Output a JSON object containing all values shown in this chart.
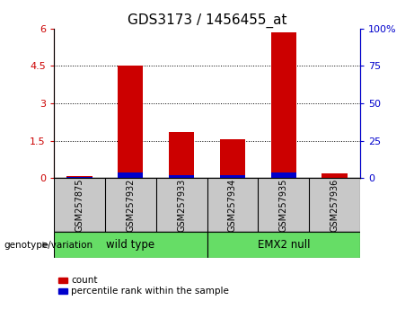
{
  "title": "GDS3173 / 1456455_at",
  "categories": [
    "GSM257875",
    "GSM257932",
    "GSM257933",
    "GSM257934",
    "GSM257935",
    "GSM257936"
  ],
  "count_values": [
    0.07,
    4.5,
    1.85,
    1.55,
    5.85,
    0.18
  ],
  "percentile_values_left": [
    0.03,
    0.22,
    0.13,
    0.1,
    0.22,
    0.02
  ],
  "ylim_left": [
    0,
    6
  ],
  "ylim_right": [
    0,
    100
  ],
  "yticks_left": [
    0,
    1.5,
    3.0,
    4.5,
    6.0
  ],
  "ytick_labels_left": [
    "0",
    "1.5",
    "3",
    "4.5",
    "6"
  ],
  "yticks_right": [
    0,
    25,
    50,
    75,
    100
  ],
  "ytick_labels_right": [
    "0",
    "25",
    "50",
    "75",
    "100%"
  ],
  "bar_width": 0.5,
  "count_color": "#CC0000",
  "percentile_color": "#0000CC",
  "group_label": "genotype/variation",
  "legend_count_label": "count",
  "legend_percentile_label": "percentile rank within the sample",
  "tick_area_bg": "#C8C8C8",
  "group_area_bg": "#66DD66",
  "title_fontsize": 11,
  "tick_fontsize": 8,
  "label_fontsize": 8
}
